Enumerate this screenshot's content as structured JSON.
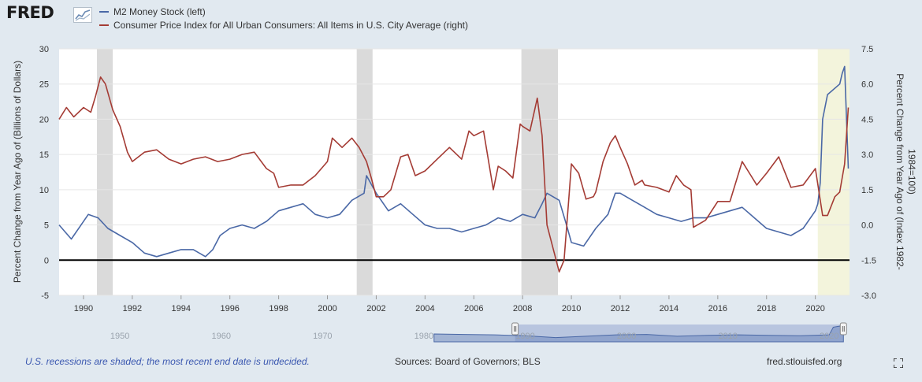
{
  "brand": {
    "name": "FRED",
    "mark_icon": "fred-line-chart-icon"
  },
  "legend": [
    {
      "label": "M2 Money Stock (left)",
      "color": "#4a68a6"
    },
    {
      "label": "Consumer Price Index for All Urban Consumers: All Items in U.S. City Average (right)",
      "color": "#a43b34"
    }
  ],
  "footer": {
    "note": "U.S. recessions are shaded; the most recent end date is undecided.",
    "sources": "Sources: Board of Governors; BLS",
    "site": "fred.stlouisfed.org"
  },
  "colors": {
    "m2": "#4a68a6",
    "cpi": "#a43b34",
    "recession": "#dadada",
    "current": "#f3f4dc",
    "background": "#e1e9f0"
  },
  "chart_data": {
    "type": "line",
    "x_range": [
      1989.0,
      2021.4
    ],
    "xtick_labels": [
      "1990",
      "1992",
      "1994",
      "1996",
      "1998",
      "2000",
      "2002",
      "2004",
      "2006",
      "2008",
      "2010",
      "2012",
      "2014",
      "2016",
      "2018",
      "2020"
    ],
    "left_axis": {
      "label": "Percent Change from Year Ago of (Billions of Dollars)",
      "range": [
        -5,
        30
      ],
      "tick_labels": [
        "-5",
        "0",
        "5",
        "10",
        "15",
        "20",
        "25",
        "30"
      ]
    },
    "right_axis": {
      "label": "Percent Change from Year Ago of (Index 1982-1984=100)",
      "range": [
        -3.0,
        7.5
      ],
      "tick_labels": [
        "-3.0",
        "-1.5",
        "0.0",
        "1.5",
        "3.0",
        "4.5",
        "6.0",
        "7.5"
      ]
    },
    "recessions": [
      [
        1990.55,
        1991.2
      ],
      [
        2001.2,
        2001.85
      ],
      [
        2007.95,
        2009.45
      ]
    ],
    "current_period": [
      2020.1,
      2021.4
    ],
    "series": [
      {
        "name": "M2 Money Stock (left)",
        "axis": "left",
        "x": [
          1989.0,
          1989.5,
          1990.0,
          1990.2,
          1990.6,
          1991.0,
          1991.5,
          1992.0,
          1992.5,
          1993.0,
          1993.5,
          1994.0,
          1994.5,
          1995.0,
          1995.3,
          1995.6,
          1996.0,
          1996.5,
          1997.0,
          1997.5,
          1998.0,
          1998.5,
          1999.0,
          1999.5,
          2000.0,
          2000.5,
          2001.0,
          2001.5,
          2001.6,
          2002.0,
          2002.5,
          2003.0,
          2003.5,
          2004.0,
          2004.5,
          2005.0,
          2005.5,
          2006.0,
          2006.5,
          2007.0,
          2007.5,
          2008.0,
          2008.5,
          2008.8,
          2009.0,
          2009.5,
          2009.8,
          2010.0,
          2010.5,
          2011.0,
          2011.5,
          2011.8,
          2012.0,
          2012.5,
          2013.0,
          2013.5,
          2014.0,
          2014.5,
          2015.0,
          2015.5,
          2016.0,
          2016.5,
          2017.0,
          2017.5,
          2018.0,
          2018.5,
          2019.0,
          2019.5,
          2020.0,
          2020.1,
          2020.2,
          2020.3,
          2020.5,
          2021.0,
          2021.1,
          2021.2,
          2021.35
        ],
        "values": [
          5.0,
          3.0,
          5.5,
          6.5,
          6.0,
          4.5,
          3.5,
          2.5,
          1.0,
          0.5,
          1.0,
          1.5,
          1.5,
          0.5,
          1.5,
          3.5,
          4.5,
          5.0,
          4.5,
          5.5,
          7.0,
          7.5,
          8.0,
          6.5,
          6.0,
          6.5,
          8.5,
          9.5,
          12.0,
          9.5,
          7.0,
          8.0,
          6.5,
          5.0,
          4.5,
          4.5,
          4.0,
          4.5,
          5.0,
          6.0,
          5.5,
          6.5,
          6.0,
          8.0,
          9.5,
          8.5,
          5.0,
          2.5,
          2.0,
          4.5,
          6.5,
          9.5,
          9.5,
          8.5,
          7.5,
          6.5,
          6.0,
          5.5,
          6.0,
          6.0,
          6.5,
          7.0,
          7.5,
          6.0,
          4.5,
          4.0,
          3.5,
          4.5,
          7.0,
          8.0,
          11.0,
          20.0,
          23.5,
          25.0,
          26.5,
          27.5,
          13.0
        ]
      },
      {
        "name": "Consumer Price Index for All Urban Consumers: All Items in U.S. City Average (right)",
        "axis": "right",
        "x": [
          1989.0,
          1989.3,
          1989.6,
          1990.0,
          1990.3,
          1990.5,
          1990.7,
          1990.9,
          1991.2,
          1991.5,
          1991.8,
          1992.0,
          1992.5,
          1993.0,
          1993.5,
          1994.0,
          1994.5,
          1995.0,
          1995.5,
          1996.0,
          1996.5,
          1997.0,
          1997.5,
          1997.8,
          1998.0,
          1998.5,
          1999.0,
          1999.5,
          2000.0,
          2000.2,
          2000.6,
          2001.0,
          2001.3,
          2001.6,
          2001.8,
          2002.0,
          2002.3,
          2002.6,
          2003.0,
          2003.3,
          2003.6,
          2004.0,
          2004.5,
          2005.0,
          2005.5,
          2005.8,
          2006.0,
          2006.4,
          2006.8,
          2007.0,
          2007.3,
          2007.6,
          2007.9,
          2008.0,
          2008.3,
          2008.6,
          2008.8,
          2009.0,
          2009.3,
          2009.5,
          2009.7,
          2009.9,
          2010.0,
          2010.3,
          2010.6,
          2010.9,
          2011.0,
          2011.3,
          2011.6,
          2011.8,
          2012.0,
          2012.3,
          2012.6,
          2012.9,
          2013.0,
          2013.5,
          2014.0,
          2014.3,
          2014.6,
          2014.9,
          2015.0,
          2015.5,
          2016.0,
          2016.5,
          2017.0,
          2017.3,
          2017.6,
          2018.0,
          2018.5,
          2019.0,
          2019.5,
          2020.0,
          2020.3,
          2020.5,
          2020.8,
          2021.0,
          2021.2,
          2021.35
        ],
        "values": [
          4.5,
          5.0,
          4.6,
          5.0,
          4.8,
          5.5,
          6.3,
          6.0,
          4.9,
          4.2,
          3.1,
          2.7,
          3.1,
          3.2,
          2.8,
          2.6,
          2.8,
          2.9,
          2.7,
          2.8,
          3.0,
          3.1,
          2.4,
          2.2,
          1.6,
          1.7,
          1.7,
          2.1,
          2.7,
          3.7,
          3.3,
          3.7,
          3.3,
          2.7,
          2.0,
          1.2,
          1.2,
          1.5,
          2.9,
          3.0,
          2.1,
          2.3,
          2.8,
          3.3,
          2.8,
          4.0,
          3.8,
          4.0,
          1.5,
          2.5,
          2.3,
          2.0,
          4.3,
          4.2,
          4.0,
          5.4,
          3.8,
          0.0,
          -1.2,
          -2.0,
          -1.5,
          1.2,
          2.6,
          2.2,
          1.1,
          1.2,
          1.4,
          2.7,
          3.5,
          3.8,
          3.3,
          2.6,
          1.7,
          1.9,
          1.7,
          1.6,
          1.4,
          2.1,
          1.7,
          1.5,
          -0.1,
          0.2,
          1.0,
          1.0,
          2.7,
          2.2,
          1.7,
          2.2,
          2.9,
          1.6,
          1.7,
          2.4,
          0.4,
          0.4,
          1.2,
          1.4,
          2.6,
          5.0
        ]
      }
    ]
  },
  "overview": {
    "tick_labels": [
      "1950",
      "1960",
      "1970",
      "1980",
      "1990",
      "2000",
      "2010",
      "2020"
    ],
    "range": [
      1944,
      2022
    ],
    "selection": [
      1989.0,
      2021.4
    ],
    "m2": {
      "x": [
        1981,
        1984,
        1987,
        1990,
        1993,
        1996,
        1999,
        2002,
        2005,
        2008,
        2011,
        2014,
        2017,
        2020,
        2020.4,
        2021.2,
        2021.4
      ],
      "values": [
        9,
        8,
        7,
        5,
        1,
        4,
        7,
        8,
        4,
        6,
        7,
        6,
        5,
        7,
        24,
        27,
        13
      ]
    }
  }
}
